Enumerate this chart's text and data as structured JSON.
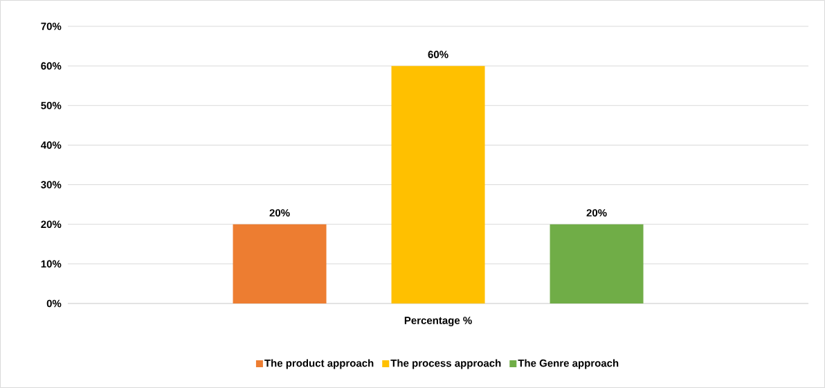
{
  "chart_data": {
    "type": "bar",
    "categories": [
      "Percentage %"
    ],
    "series": [
      {
        "name": "The product approach",
        "color": "#ed7d31",
        "values": [
          20
        ],
        "value_labels": [
          "20%"
        ]
      },
      {
        "name": "The process approach",
        "color": "#ffc000",
        "values": [
          60
        ],
        "value_labels": [
          "60%"
        ]
      },
      {
        "name": "The Genre approach",
        "color": "#70ad47",
        "values": [
          20
        ],
        "value_labels": [
          "20%"
        ]
      }
    ],
    "ylim": [
      0,
      70
    ],
    "yticks": [
      {
        "value": 0,
        "label": "0%"
      },
      {
        "value": 10,
        "label": "10%"
      },
      {
        "value": 20,
        "label": "20%"
      },
      {
        "value": 30,
        "label": "30%"
      },
      {
        "value": 40,
        "label": "40%"
      },
      {
        "value": 50,
        "label": "50%"
      },
      {
        "value": 60,
        "label": "60%"
      },
      {
        "value": 70,
        "label": "70%"
      }
    ],
    "grid": "y",
    "legend": "bottom"
  }
}
